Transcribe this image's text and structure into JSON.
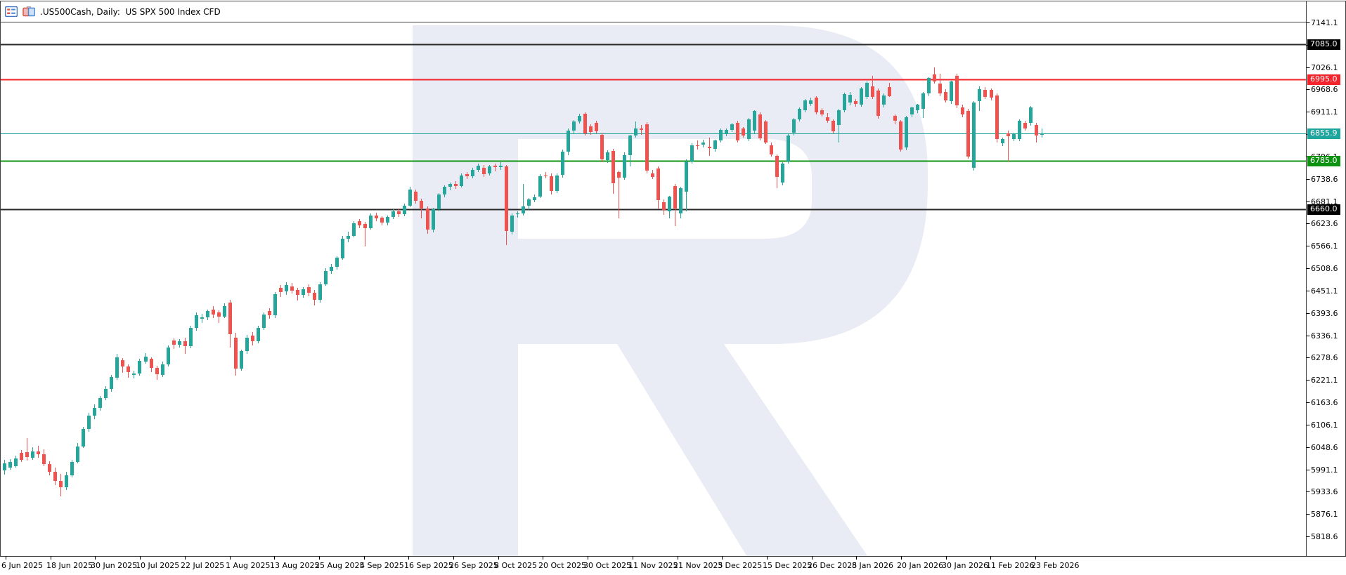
{
  "header": {
    "title": ".US500Cash, Daily:  US SPX 500 Index CFD",
    "symbol": ".US500Cash",
    "period": "Daily",
    "description": "US SPX 500 Index CFD"
  },
  "colors": {
    "candle_up": "#26a69a",
    "candle_down": "#ef5350",
    "level_black": "#2a2a2a",
    "level_black_tag": "#000000",
    "level_red": "#f1252b",
    "level_green": "#0f9413",
    "current_price": "#21a69e",
    "watermark": "#e9ecf4",
    "border": "#3f3f3f",
    "text": "#000000"
  },
  "chart_data": {
    "type": "candlestick",
    "title": ".US500Cash, Daily: US SPX 500 Index CFD",
    "xlabel": "",
    "ylabel": "",
    "grid": false,
    "legend": false,
    "ylim": [
      5768,
      7143
    ],
    "y_tick_step": 57.5,
    "x_tick_labels": [
      "6 Jun 2025",
      "18 Jun 2025",
      "30 Jun 2025",
      "10 Jul 2025",
      "22 Jul 2025",
      "1 Aug 2025",
      "13 Aug 2025",
      "25 Aug 2025",
      "4 Sep 2025",
      "16 Sep 2025",
      "26 Sep 2025",
      "8 Oct 2025",
      "20 Oct 2025",
      "30 Oct 2025",
      "11 Nov 2025",
      "21 Nov 2025",
      "3 Dec 2025",
      "15 Dec 2025",
      "26 Dec 2025",
      "8 Jan 2026",
      "20 Jan 2026",
      "30 Jan 2026",
      "11 Feb 2026",
      "23 Feb 2026"
    ],
    "y_tick_labels": [
      "7141.1",
      "7083.6",
      "7026.1",
      "6968.6",
      "6911.1",
      "6853.6",
      "6796.1",
      "6738.6",
      "6681.1",
      "6623.6",
      "6566.1",
      "6508.6",
      "6451.1",
      "6393.6",
      "6336.1",
      "6278.6",
      "6221.1",
      "6163.6",
      "6106.1",
      "6048.6",
      "5991.1",
      "5933.6",
      "5876.1",
      "5818.6"
    ],
    "levels": [
      {
        "label": "7085.0",
        "price": 7085.0,
        "role": "resistance-line",
        "color": "#2a2a2a",
        "tag_bg": "#000000",
        "thickness": 2
      },
      {
        "label": "6995.0",
        "price": 6995.0,
        "role": "resistance-line",
        "color": "#f1252b",
        "tag_bg": "#f1252b",
        "thickness": 2
      },
      {
        "label": "6855.9",
        "price": 6855.9,
        "role": "current-price-line",
        "color": "#21a69e",
        "tag_bg": "#1ea59d",
        "thickness": 1
      },
      {
        "label": "6785.0",
        "price": 6785.0,
        "role": "support-line",
        "color": "#0f9413",
        "tag_bg": "#0c9210",
        "thickness": 2
      },
      {
        "label": "6660.0",
        "price": 6660.0,
        "role": "support-line",
        "color": "#2a2a2a",
        "tag_bg": "#000000",
        "thickness": 2
      }
    ],
    "current_price": 6855.9,
    "candles_ohlc": [
      [
        5988,
        6016,
        5978,
        6006
      ],
      [
        5997,
        6018,
        5990,
        6011
      ],
      [
        6000,
        6026,
        5995,
        6020
      ],
      [
        6033,
        6040,
        6010,
        6015
      ],
      [
        6035,
        6072,
        6014,
        6022
      ],
      [
        6022,
        6048,
        6016,
        6038
      ],
      [
        6038,
        6052,
        6022,
        6030
      ],
      [
        6030,
        6042,
        5998,
        6005
      ],
      [
        6005,
        6012,
        5975,
        5985
      ],
      [
        5985,
        5995,
        5950,
        5962
      ],
      [
        5962,
        5980,
        5922,
        5945
      ],
      [
        5945,
        5985,
        5938,
        5975
      ],
      [
        5975,
        6015,
        5970,
        6010
      ],
      [
        6010,
        6058,
        6005,
        6050
      ],
      [
        6050,
        6100,
        6045,
        6095
      ],
      [
        6095,
        6136,
        6088,
        6130
      ],
      [
        6130,
        6158,
        6120,
        6150
      ],
      [
        6150,
        6180,
        6142,
        6175
      ],
      [
        6175,
        6205,
        6168,
        6198
      ],
      [
        6198,
        6235,
        6192,
        6228
      ],
      [
        6228,
        6288,
        6222,
        6280
      ],
      [
        6272,
        6278,
        6240,
        6255
      ],
      [
        6255,
        6262,
        6228,
        6240
      ],
      [
        6234,
        6245,
        6225,
        6238
      ],
      [
        6238,
        6275,
        6232,
        6270
      ],
      [
        6270,
        6290,
        6262,
        6282
      ],
      [
        6275,
        6280,
        6242,
        6252
      ],
      [
        6252,
        6258,
        6222,
        6235
      ],
      [
        6235,
        6268,
        6228,
        6262
      ],
      [
        6262,
        6310,
        6255,
        6305
      ],
      [
        6322,
        6328,
        6300,
        6312
      ],
      [
        6312,
        6326,
        6305,
        6321
      ],
      [
        6320,
        6330,
        6288,
        6308
      ],
      [
        6308,
        6360,
        6302,
        6355
      ],
      [
        6355,
        6395,
        6348,
        6388
      ],
      [
        6378,
        6392,
        6368,
        6382
      ],
      [
        6382,
        6402,
        6375,
        6398
      ],
      [
        6402,
        6412,
        6382,
        6390
      ],
      [
        6395,
        6400,
        6368,
        6385
      ],
      [
        6385,
        6418,
        6380,
        6412
      ],
      [
        6420,
        6428,
        6305,
        6338
      ],
      [
        6330,
        6342,
        6232,
        6250
      ],
      [
        6250,
        6300,
        6245,
        6295
      ],
      [
        6295,
        6338,
        6290,
        6330
      ],
      [
        6335,
        6345,
        6310,
        6320
      ],
      [
        6320,
        6360,
        6315,
        6355
      ],
      [
        6355,
        6395,
        6350,
        6390
      ],
      [
        6398,
        6405,
        6378,
        6388
      ],
      [
        6388,
        6448,
        6382,
        6442
      ],
      [
        6458,
        6465,
        6435,
        6448
      ],
      [
        6448,
        6472,
        6440,
        6465
      ],
      [
        6462,
        6470,
        6442,
        6452
      ],
      [
        6452,
        6458,
        6425,
        6440
      ],
      [
        6440,
        6460,
        6432,
        6455
      ],
      [
        6460,
        6468,
        6438,
        6446
      ],
      [
        6446,
        6452,
        6412,
        6428
      ],
      [
        6428,
        6472,
        6420,
        6468
      ],
      [
        6468,
        6508,
        6462,
        6502
      ],
      [
        6502,
        6520,
        6495,
        6512
      ],
      [
        6512,
        6540,
        6505,
        6535
      ],
      [
        6535,
        6592,
        6530,
        6585
      ],
      [
        6585,
        6602,
        6575,
        6592
      ],
      [
        6592,
        6630,
        6588,
        6625
      ],
      [
        6630,
        6636,
        6612,
        6620
      ],
      [
        6622,
        6628,
        6565,
        6612
      ],
      [
        6612,
        6650,
        6608,
        6645
      ],
      [
        6645,
        6652,
        6630,
        6638
      ],
      [
        6638,
        6642,
        6618,
        6625
      ],
      [
        6625,
        6645,
        6620,
        6640
      ],
      [
        6640,
        6660,
        6635,
        6655
      ],
      [
        6655,
        6662,
        6640,
        6648
      ],
      [
        6648,
        6675,
        6642,
        6670
      ],
      [
        6670,
        6718,
        6665,
        6712
      ],
      [
        6705,
        6712,
        6675,
        6682
      ],
      [
        6682,
        6688,
        6637,
        6662
      ],
      [
        6662,
        6668,
        6598,
        6608
      ],
      [
        6608,
        6665,
        6602,
        6660
      ],
      [
        6660,
        6702,
        6655,
        6698
      ],
      [
        6698,
        6722,
        6692,
        6718
      ],
      [
        6718,
        6730,
        6710,
        6725
      ],
      [
        6726,
        6732,
        6712,
        6720
      ],
      [
        6720,
        6752,
        6715,
        6748
      ],
      [
        6750,
        6756,
        6738,
        6745
      ],
      [
        6745,
        6768,
        6740,
        6762
      ],
      [
        6762,
        6778,
        6756,
        6772
      ],
      [
        6768,
        6775,
        6745,
        6752
      ],
      [
        6752,
        6775,
        6748,
        6770
      ],
      [
        6772,
        6778,
        6758,
        6768
      ],
      [
        6768,
        6782,
        6762,
        6772
      ],
      [
        6770,
        6774,
        6568,
        6603
      ],
      [
        6603,
        6650,
        6595,
        6645
      ],
      [
        6648,
        6655,
        6638,
        6650
      ],
      [
        6650,
        6726,
        6645,
        6668
      ],
      [
        6668,
        6690,
        6660,
        6685
      ],
      [
        6685,
        6698,
        6678,
        6692
      ],
      [
        6692,
        6750,
        6688,
        6745
      ],
      [
        6748,
        6756,
        6740,
        6746
      ],
      [
        6746,
        6752,
        6698,
        6708
      ],
      [
        6708,
        6752,
        6702,
        6748
      ],
      [
        6748,
        6814,
        6742,
        6808
      ],
      [
        6808,
        6868,
        6800,
        6862
      ],
      [
        6862,
        6890,
        6856,
        6886
      ],
      [
        6886,
        6906,
        6880,
        6901
      ],
      [
        6906,
        6910,
        6850,
        6856
      ],
      [
        6874,
        6880,
        6852,
        6860
      ],
      [
        6883,
        6888,
        6856,
        6862
      ],
      [
        6852,
        6858,
        6782,
        6789
      ],
      [
        6787,
        6812,
        6780,
        6807
      ],
      [
        6810,
        6815,
        6699,
        6726
      ],
      [
        6756,
        6760,
        6638,
        6742
      ],
      [
        6742,
        6806,
        6735,
        6800
      ],
      [
        6800,
        6852,
        6770,
        6850
      ],
      [
        6850,
        6886,
        6845,
        6868
      ],
      [
        6868,
        6878,
        6852,
        6865
      ],
      [
        6879,
        6884,
        6752,
        6759
      ],
      [
        6753,
        6762,
        6738,
        6744
      ],
      [
        6765,
        6770,
        6660,
        6684
      ],
      [
        6679,
        6685,
        6645,
        6660
      ],
      [
        6655,
        6695,
        6638,
        6693
      ],
      [
        6721,
        6726,
        6618,
        6664
      ],
      [
        6650,
        6718,
        6636,
        6715
      ],
      [
        6705,
        6788,
        6655,
        6783
      ],
      [
        6783,
        6830,
        6778,
        6825
      ],
      [
        6825,
        6838,
        6815,
        6823
      ],
      [
        6826,
        6840,
        6820,
        6832
      ],
      [
        6822,
        6845,
        6798,
        6819
      ],
      [
        6816,
        6840,
        6810,
        6837
      ],
      [
        6837,
        6868,
        6832,
        6864
      ],
      [
        6855,
        6868,
        6848,
        6864
      ],
      [
        6864,
        6882,
        6858,
        6879
      ],
      [
        6882,
        6888,
        6832,
        6837
      ],
      [
        6868,
        6872,
        6845,
        6850
      ],
      [
        6840,
        6895,
        6835,
        6891
      ],
      [
        6862,
        6916,
        6855,
        6913
      ],
      [
        6904,
        6910,
        6838,
        6843
      ],
      [
        6886,
        6890,
        6828,
        6832
      ],
      [
        6825,
        6832,
        6795,
        6801
      ],
      [
        6798,
        6802,
        6715,
        6744
      ],
      [
        6730,
        6782,
        6722,
        6778
      ],
      [
        6783,
        6855,
        6778,
        6850
      ],
      [
        6857,
        6895,
        6850,
        6891
      ],
      [
        6891,
        6922,
        6885,
        6918
      ],
      [
        6915,
        6945,
        6910,
        6941
      ],
      [
        6932,
        6948,
        6926,
        6941
      ],
      [
        6948,
        6952,
        6905,
        6910
      ],
      [
        6915,
        6920,
        6898,
        6904
      ],
      [
        6897,
        6908,
        6882,
        6888
      ],
      [
        6888,
        6892,
        6855,
        6861
      ],
      [
        6877,
        6918,
        6832,
        6915
      ],
      [
        6915,
        6960,
        6910,
        6957
      ],
      [
        6935,
        6962,
        6928,
        6955
      ],
      [
        6939,
        6945,
        6925,
        6932
      ],
      [
        6930,
        6975,
        6925,
        6971
      ],
      [
        6950,
        6990,
        6944,
        6986
      ],
      [
        6977,
        7004,
        6945,
        6950
      ],
      [
        6965,
        6972,
        6895,
        6900
      ],
      [
        6930,
        6958,
        6922,
        6953
      ],
      [
        6975,
        6985,
        6948,
        6952
      ],
      [
        6900,
        6905,
        6880,
        6888
      ],
      [
        6886,
        6890,
        6808,
        6814
      ],
      [
        6819,
        6900,
        6812,
        6897
      ],
      [
        6904,
        6925,
        6898,
        6922
      ],
      [
        6915,
        6932,
        6908,
        6930
      ],
      [
        6920,
        6962,
        6895,
        6959
      ],
      [
        6959,
        7000,
        6952,
        6998
      ],
      [
        7007,
        7026,
        6985,
        6989
      ],
      [
        6984,
        7010,
        6952,
        6959
      ],
      [
        6962,
        6970,
        6935,
        6941
      ],
      [
        6939,
        6992,
        6932,
        6989
      ],
      [
        7004,
        7010,
        6922,
        6928
      ],
      [
        6922,
        6930,
        6898,
        6904
      ],
      [
        6913,
        6918,
        6790,
        6796
      ],
      [
        6768,
        6938,
        6759,
        6936
      ],
      [
        6940,
        6976,
        6913,
        6970
      ],
      [
        6968,
        6975,
        6945,
        6950
      ],
      [
        6968,
        6972,
        6942,
        6948
      ],
      [
        6953,
        6958,
        6832,
        6841
      ],
      [
        6830,
        6845,
        6824,
        6841
      ],
      [
        6855,
        6862,
        6783,
        6847
      ],
      [
        6841,
        6858,
        6836,
        6855
      ],
      [
        6841,
        6892,
        6836,
        6888
      ],
      [
        6882,
        6888,
        6862,
        6868
      ],
      [
        6882,
        6926,
        6876,
        6922
      ],
      [
        6877,
        6882,
        6832,
        6850
      ],
      [
        6852,
        6868,
        6845,
        6856
      ]
    ]
  },
  "watermark": {
    "letter": "R",
    "color": "#e9ecf4"
  }
}
